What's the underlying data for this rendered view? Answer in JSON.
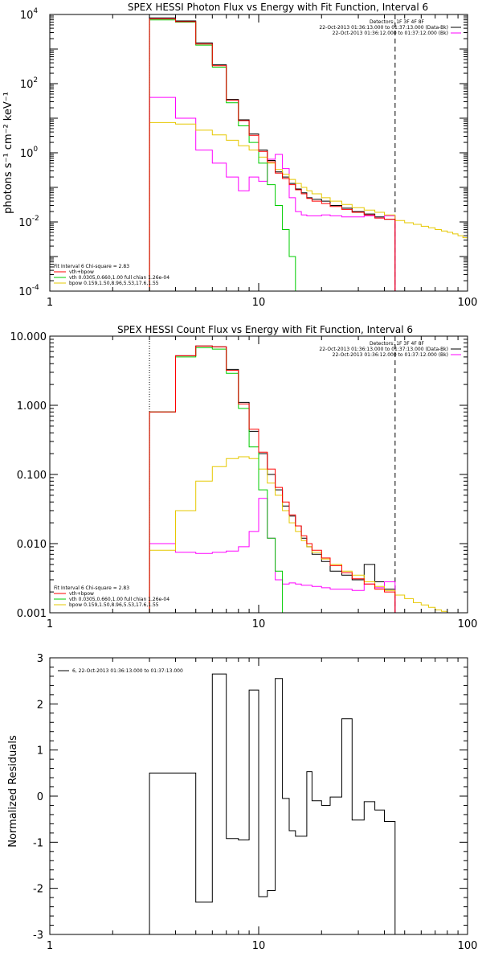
{
  "colors": {
    "data": "#000000",
    "total": "#ff0000",
    "vth": "#00cc00",
    "bpow": "#e6c800",
    "bk": "#ff00ff",
    "background": "#ffffff"
  },
  "chart_data": [
    {
      "type": "line",
      "title": "SPEX HESSI Photon Flux vs Energy with Fit Function, Interval 6",
      "xlabel": "",
      "ylabel": "photons s⁻¹ cm⁻² keV⁻¹",
      "xscale": "log",
      "yscale": "log",
      "xlim": [
        1,
        100
      ],
      "ylim": [
        0.0001,
        10000
      ],
      "x_ticks": [
        "1",
        "10",
        "100"
      ],
      "y_ticks": [
        {
          "mant": "10",
          "exp": "-4"
        },
        {
          "mant": "10",
          "exp": "-2"
        },
        {
          "mant": "10",
          "exp": "0"
        },
        {
          "mant": "10",
          "exp": "2"
        },
        {
          "mant": "10",
          "exp": "4"
        }
      ],
      "edges": [
        3,
        4,
        5,
        6,
        7,
        8,
        9,
        10,
        11,
        12,
        13,
        14,
        15,
        16,
        17,
        18,
        20,
        22,
        25,
        28,
        32,
        36,
        40,
        45
      ],
      "vlines": {
        "dotted": 3,
        "dashed": 45
      },
      "legend_top": {
        "detectors": "Detectors: 1F 3F 4F 8F",
        "data_line": "22-Oct-2013 01:36:13.000 to 01:37:13.000 (Data-Bk)",
        "bk_line": "22-Oct-2013 01:36:12.000 to 01:37:12.000 (Bk)"
      },
      "legend_fit": {
        "header": "Fit Interval 6   Chi-square = 2.83",
        "total": "vth+bpow",
        "vth": "vth 0.0305,0.660,1.00  full chian 1.26e-04",
        "bpow": "bpow 0.159,1.50,8.96,5.53,17.6,1.55"
      },
      "series": [
        {
          "name": "",
          "key": "data",
          "color": "#000000",
          "values": [
            8000,
            6500,
            1500,
            350,
            35,
            9,
            3.5,
            1.2,
            0.6,
            0.28,
            0.2,
            0.13,
            0.09,
            0.07,
            0.05,
            0.045,
            0.04,
            0.03,
            0.025,
            0.02,
            0.017,
            0.014,
            0.012
          ]
        },
        {
          "name": "vth+bpow",
          "key": "total",
          "color": "#ff0000",
          "values": [
            7500,
            6200,
            1400,
            330,
            33,
            8.5,
            3.2,
            1.1,
            0.55,
            0.26,
            0.18,
            0.12,
            0.085,
            0.065,
            0.048,
            0.04,
            0.034,
            0.028,
            0.023,
            0.019,
            0.016,
            0.013,
            0.012
          ]
        },
        {
          "name": "vth",
          "key": "vth",
          "color": "#00cc00",
          "values": [
            7000,
            6000,
            1300,
            300,
            28,
            6,
            2,
            0.5,
            0.12,
            0.03,
            0.006,
            0.001,
            0.0001
          ]
        },
        {
          "name": "bpow",
          "key": "bpow",
          "color": "#e6c800",
          "values": [
            7.5,
            6.8,
            4.5,
            3.3,
            2.3,
            1.6,
            1.2,
            0.75,
            0.5,
            0.33,
            0.24,
            0.17,
            0.13,
            0.1,
            0.08,
            0.065,
            0.05,
            0.04,
            0.032,
            0.026,
            0.022,
            0.019,
            0.016
          ],
          "tail_edges": [
            45,
            50,
            55,
            60,
            65,
            70,
            75,
            80,
            85,
            90,
            95,
            100
          ],
          "tail_values": [
            0.011,
            0.0095,
            0.0085,
            0.0075,
            0.0068,
            0.006,
            0.0055,
            0.005,
            0.0045,
            0.004,
            0.0035
          ]
        },
        {
          "name": "",
          "key": "bk",
          "color": "#ff00ff",
          "values": [
            40,
            10,
            1.2,
            0.5,
            0.2,
            0.08,
            0.2,
            0.15,
            0.65,
            0.9,
            0.35,
            0.05,
            0.02,
            0.016,
            0.015,
            0.015,
            0.016,
            0.015,
            0.014,
            0.014,
            0.015,
            0.013,
            0.015
          ]
        }
      ]
    },
    {
      "type": "line",
      "title": "SPEX HESSI Count Flux vs Energy with Fit Function, Interval 6",
      "xlabel": "",
      "ylabel": "",
      "xscale": "log",
      "yscale": "log",
      "xlim": [
        1,
        100
      ],
      "ylim": [
        0.001,
        10
      ],
      "x_ticks": [
        "1",
        "10",
        "100"
      ],
      "y_ticks": [
        "0.001",
        "0.010",
        "0.100",
        "1.000",
        "10.000"
      ],
      "edges": [
        3,
        4,
        5,
        6,
        7,
        8,
        9,
        10,
        11,
        12,
        13,
        14,
        15,
        16,
        17,
        18,
        20,
        22,
        25,
        28,
        32,
        36,
        40,
        45
      ],
      "vlines": {
        "dotted": 3,
        "dashed": 45
      },
      "legend_top": {
        "detectors": "Detectors: 1F 3F 4F 8F",
        "data_line": "22-Oct-2013 01:36:13.000 to 01:37:13.000 (Data-Bk)",
        "bk_line": "22-Oct-2013 01:36:12.000 to 01:37:12.000 (Bk)"
      },
      "legend_fit": {
        "header": "Fit Interval 6   Chi-square = 2.83",
        "total": "vth+bpow",
        "vth": "vth 0.0305,0.660,1.00  full chian 1.26e-04",
        "bpow": "bpow 0.159,1.50,8.96,5.53,17.6,1.55"
      },
      "series": [
        {
          "name": "",
          "key": "data",
          "color": "#000000",
          "values": [
            0.8,
            5.2,
            7.2,
            7.0,
            3.3,
            1.1,
            0.42,
            0.2,
            0.1,
            0.06,
            0.035,
            0.025,
            0.018,
            0.012,
            0.009,
            0.007,
            0.0055,
            0.004,
            0.0035,
            0.003,
            0.005,
            0.0028,
            0.0022
          ]
        },
        {
          "name": "vth+bpow",
          "key": "total",
          "color": "#ff0000",
          "values": [
            0.8,
            5.2,
            7.2,
            7.0,
            3.2,
            1.05,
            0.45,
            0.21,
            0.12,
            0.065,
            0.04,
            0.026,
            0.018,
            0.013,
            0.01,
            0.008,
            0.0062,
            0.0048,
            0.0038,
            0.0031,
            0.0026,
            0.0022,
            0.002
          ]
        },
        {
          "name": "vth",
          "key": "vth",
          "color": "#00cc00",
          "values": [
            0.8,
            5.0,
            6.8,
            6.5,
            2.9,
            0.9,
            0.25,
            0.06,
            0.012,
            0.004,
            0.001
          ]
        },
        {
          "name": "bpow",
          "key": "bpow",
          "color": "#e6c800",
          "values": [
            0.008,
            0.03,
            0.08,
            0.13,
            0.17,
            0.18,
            0.17,
            0.12,
            0.075,
            0.05,
            0.03,
            0.02,
            0.015,
            0.011,
            0.009,
            0.0075,
            0.006,
            0.005,
            0.004,
            0.0035,
            0.0028,
            0.0024,
            0.0021
          ],
          "tail_edges": [
            45,
            50,
            55,
            60,
            65,
            70,
            75,
            80,
            85,
            90,
            95,
            100
          ],
          "tail_values": [
            0.0018,
            0.0016,
            0.0014,
            0.0013,
            0.0012,
            0.0011,
            0.00105,
            0.001,
            0.001,
            0.001,
            0.001
          ]
        },
        {
          "name": "",
          "key": "bk",
          "color": "#ff00ff",
          "values": [
            0.01,
            0.0075,
            0.0072,
            0.0075,
            0.0078,
            0.009,
            0.015,
            0.045,
            0.012,
            0.003,
            0.0026,
            0.0027,
            0.0026,
            0.0025,
            0.0025,
            0.0024,
            0.0023,
            0.0022,
            0.0022,
            0.0021,
            0.0026,
            0.0023,
            0.0028
          ]
        }
      ]
    },
    {
      "type": "line",
      "title": "",
      "xlabel": "",
      "ylabel": "Normalized Residuals",
      "xscale": "log",
      "yscale": "linear",
      "xlim": [
        1,
        100
      ],
      "ylim": [
        -3,
        3
      ],
      "x_ticks": [
        "1",
        "10",
        "100"
      ],
      "y_ticks": [
        "-3",
        "-2",
        "-1",
        "0",
        "1",
        "2",
        "3"
      ],
      "legend": "6, 22-Oct-2013 01:36:13.000 to 01:37:13.000",
      "edges": [
        3,
        5,
        6,
        7,
        8,
        9,
        10,
        11,
        12,
        13,
        14,
        15,
        17,
        18,
        20,
        22,
        25,
        28,
        32,
        36,
        40,
        45
      ],
      "series": [
        {
          "name": "",
          "key": "resid",
          "color": "#000000",
          "values": [
            0.5,
            -2.3,
            2.65,
            -0.92,
            -0.95,
            2.3,
            -2.18,
            -2.05,
            2.55,
            -0.05,
            -0.75,
            -0.87,
            0.53,
            -0.1,
            -0.2,
            -0.02,
            1.68,
            -0.52,
            -0.12,
            -0.3,
            -0.55
          ]
        }
      ]
    }
  ]
}
